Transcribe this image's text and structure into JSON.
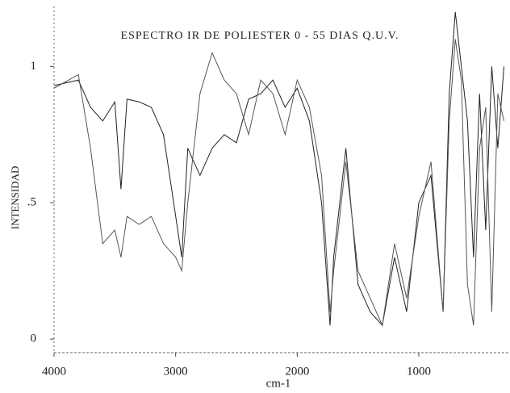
{
  "chart_data": {
    "type": "line",
    "title": "ESPECTRO IR DE POLIESTER 0 - 55 DIAS Q.U.V.",
    "x_label": "cm-1",
    "y_label": "INTENSIDAD",
    "x": [
      4000,
      3800,
      3700,
      3600,
      3500,
      3450,
      3400,
      3300,
      3200,
      3100,
      3000,
      2950,
      2900,
      2800,
      2700,
      2600,
      2500,
      2400,
      2300,
      2200,
      2100,
      2000,
      1900,
      1800,
      1730,
      1700,
      1600,
      1500,
      1400,
      1300,
      1200,
      1100,
      1000,
      900,
      800,
      750,
      700,
      650,
      600,
      550,
      500,
      450,
      400,
      350,
      300
    ],
    "series": [
      {
        "color": "#222222",
        "values": [
          0.93,
          0.95,
          0.85,
          0.8,
          0.87,
          0.55,
          0.88,
          0.87,
          0.85,
          0.75,
          0.45,
          0.3,
          0.7,
          0.6,
          0.7,
          0.75,
          0.72,
          0.88,
          0.9,
          0.95,
          0.85,
          0.92,
          0.8,
          0.5,
          0.05,
          0.3,
          0.7,
          0.2,
          0.1,
          0.05,
          0.3,
          0.1,
          0.5,
          0.6,
          0.1,
          0.9,
          1.2,
          1.0,
          0.8,
          0.3,
          0.9,
          0.4,
          1.0,
          0.7,
          1.0
        ]
      },
      {
        "color": "#555555",
        "values": [
          0.92,
          0.97,
          0.7,
          0.35,
          0.4,
          0.3,
          0.45,
          0.42,
          0.45,
          0.35,
          0.3,
          0.25,
          0.5,
          0.9,
          1.05,
          0.95,
          0.9,
          0.75,
          0.95,
          0.9,
          0.75,
          0.95,
          0.85,
          0.6,
          0.1,
          0.25,
          0.65,
          0.25,
          0.15,
          0.05,
          0.35,
          0.15,
          0.45,
          0.65,
          0.1,
          0.8,
          1.1,
          0.95,
          0.2,
          0.05,
          0.7,
          0.85,
          0.1,
          0.9,
          0.8
        ]
      }
    ],
    "xlim": [
      4000,
      250
    ],
    "xticks": [
      4000,
      3000,
      2000,
      1000
    ],
    "ylim": [
      -0.05,
      1.22
    ],
    "yticks": [
      0,
      {
        "value": 0.5,
        "label": ".5"
      },
      1
    ]
  }
}
